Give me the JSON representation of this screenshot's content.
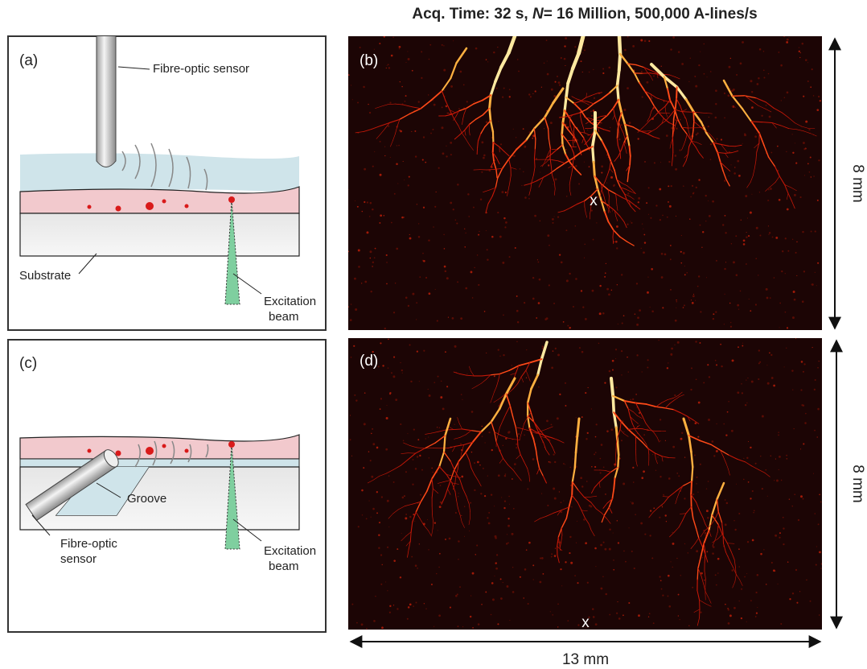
{
  "title": {
    "prefix": "Acq. Time: 32 s, ",
    "italic": "N",
    "suffix": "= 16 Million, 500,000 A-lines/s"
  },
  "panel_a": {
    "label": "(a)",
    "sensor_label": "Fibre-optic sensor",
    "substrate_label": "Substrate",
    "beam_label": [
      "Excitation",
      "beam"
    ]
  },
  "panel_b": {
    "label": "(b)",
    "marker": "x"
  },
  "panel_c": {
    "label": "(c)",
    "groove_label": "Groove",
    "sensor_label": [
      "Fibre-optic",
      "sensor"
    ],
    "beam_label": [
      "Excitation",
      "beam"
    ]
  },
  "panel_d": {
    "label": "(d)",
    "marker": "x"
  },
  "scale": {
    "height_b": "8 mm",
    "height_d": "8 mm",
    "width": "13 mm"
  }
}
